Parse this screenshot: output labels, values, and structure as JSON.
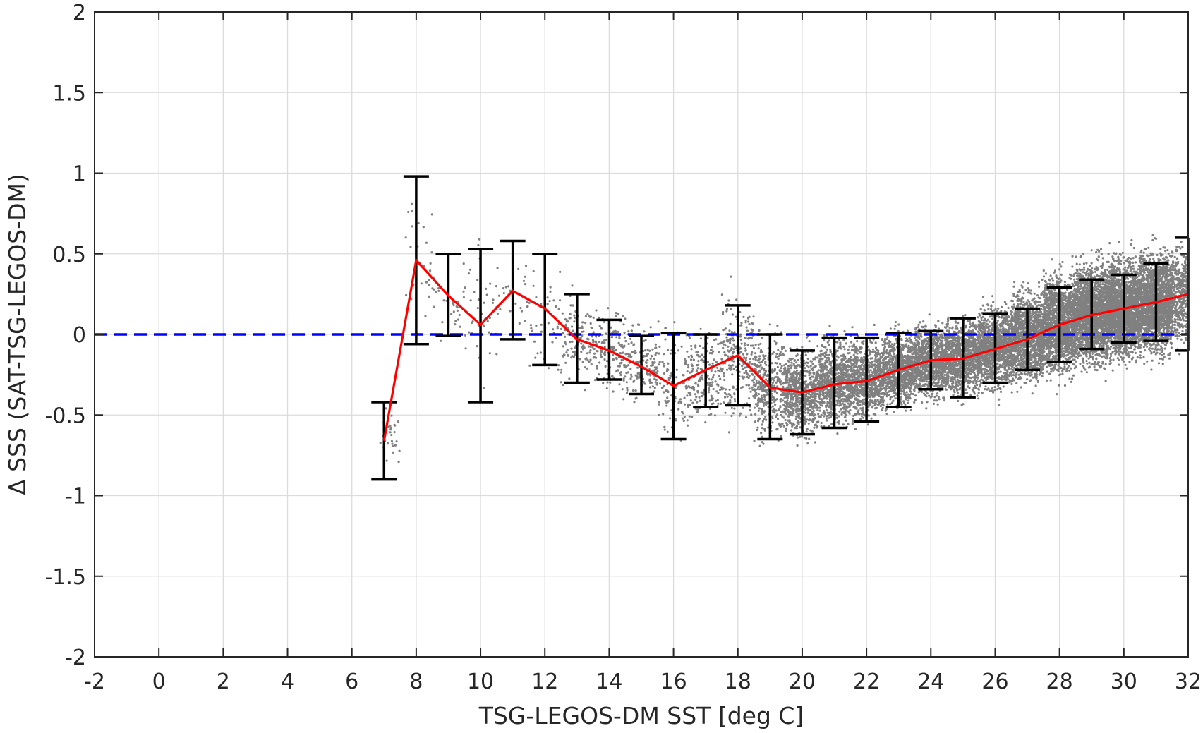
{
  "chart_data": {
    "type": "scatter",
    "title": "",
    "xlabel": "TSG-LEGOS-DM SST [deg C]",
    "ylabel": "Δ SSS (SAT-TSG-LEGOS-DM)",
    "xlim": [
      -2,
      32
    ],
    "ylim": [
      -2,
      2
    ],
    "x_ticks": [
      -2,
      0,
      2,
      4,
      6,
      8,
      10,
      12,
      14,
      16,
      18,
      20,
      22,
      24,
      26,
      28,
      30,
      32
    ],
    "x_tick_labels": [
      "-2",
      "0",
      "2",
      "4",
      "6",
      "8",
      "10",
      "12",
      "14",
      "16",
      "18",
      "20",
      "22",
      "24",
      "26",
      "28",
      "30",
      "32"
    ],
    "y_ticks": [
      -2,
      -1.5,
      -1,
      -0.5,
      0,
      0.5,
      1,
      1.5,
      2
    ],
    "y_tick_labels": [
      "-2",
      "-1.5",
      "-1",
      "-0.5",
      "0",
      "0.5",
      "1",
      "1.5",
      "2"
    ],
    "grid": true,
    "colors": {
      "scatter": "#808080",
      "mean_line": "#ff0000",
      "zero_line": "#0000ff",
      "error_bars": "#000000"
    },
    "reference_line": {
      "y": 0,
      "style": "dashed"
    },
    "scatter_density": [
      {
        "x": [
          6.8,
          7.6
        ],
        "center": -0.65,
        "spread": 0.12,
        "n": 30
      },
      {
        "x": [
          7.6,
          8.5
        ],
        "center": 0.5,
        "spread": 0.25,
        "n": 25
      },
      {
        "x": [
          8.5,
          9.5
        ],
        "center": 0.2,
        "spread": 0.15,
        "n": 30
      },
      {
        "x": [
          9.5,
          10.5
        ],
        "center": 0.1,
        "spread": 0.3,
        "n": 40
      },
      {
        "x": [
          10.5,
          11.5
        ],
        "center": 0.25,
        "spread": 0.15,
        "n": 25
      },
      {
        "x": [
          11.5,
          12.5
        ],
        "center": 0.1,
        "spread": 0.2,
        "n": 40
      },
      {
        "x": [
          12.5,
          13.5
        ],
        "center": -0.03,
        "spread": 0.18,
        "n": 120
      },
      {
        "x": [
          13.5,
          14.5
        ],
        "center": -0.1,
        "spread": 0.17,
        "n": 160
      },
      {
        "x": [
          14.5,
          15.5
        ],
        "center": -0.2,
        "spread": 0.15,
        "n": 160
      },
      {
        "x": [
          15.5,
          16.5
        ],
        "center": -0.3,
        "spread": 0.22,
        "n": 120
      },
      {
        "x": [
          16.5,
          17.5
        ],
        "center": -0.25,
        "spread": 0.18,
        "n": 180
      },
      {
        "x": [
          17.5,
          18.5
        ],
        "center": -0.15,
        "spread": 0.25,
        "n": 260
      },
      {
        "x": [
          18.5,
          19.5
        ],
        "center": -0.33,
        "spread": 0.2,
        "n": 420
      },
      {
        "x": [
          19.5,
          20.5
        ],
        "center": -0.36,
        "spread": 0.18,
        "n": 700
      },
      {
        "x": [
          20.5,
          21.5
        ],
        "center": -0.3,
        "spread": 0.17,
        "n": 800
      },
      {
        "x": [
          21.5,
          22.5
        ],
        "center": -0.28,
        "spread": 0.16,
        "n": 800
      },
      {
        "x": [
          22.5,
          23.5
        ],
        "center": -0.22,
        "spread": 0.15,
        "n": 850
      },
      {
        "x": [
          23.5,
          24.5
        ],
        "center": -0.16,
        "spread": 0.15,
        "n": 950
      },
      {
        "x": [
          24.5,
          25.5
        ],
        "center": -0.14,
        "spread": 0.16,
        "n": 1000
      },
      {
        "x": [
          25.5,
          26.5
        ],
        "center": -0.08,
        "spread": 0.17,
        "n": 1100
      },
      {
        "x": [
          26.5,
          27.5
        ],
        "center": -0.02,
        "spread": 0.18,
        "n": 1300
      },
      {
        "x": [
          27.5,
          28.5
        ],
        "center": 0.07,
        "spread": 0.2,
        "n": 1600
      },
      {
        "x": [
          28.5,
          29.5
        ],
        "center": 0.13,
        "spread": 0.2,
        "n": 1900
      },
      {
        "x": [
          29.5,
          30.5
        ],
        "center": 0.16,
        "spread": 0.2,
        "n": 2100
      },
      {
        "x": [
          30.5,
          31.5
        ],
        "center": 0.2,
        "spread": 0.21,
        "n": 1800
      },
      {
        "x": [
          31.5,
          32
        ],
        "center": 0.25,
        "spread": 0.2,
        "n": 400
      }
    ],
    "series": [
      {
        "name": "",
        "x": [
          7,
          8,
          9,
          10,
          11,
          12,
          13,
          14,
          15,
          16,
          17,
          18,
          19,
          20,
          21,
          22,
          23,
          24,
          25,
          26,
          27,
          28,
          29,
          30,
          31,
          32
        ],
        "mean": [
          -0.66,
          0.46,
          0.24,
          0.06,
          0.27,
          0.16,
          -0.03,
          -0.1,
          -0.2,
          -0.32,
          -0.22,
          -0.13,
          -0.33,
          -0.36,
          -0.31,
          -0.29,
          -0.22,
          -0.16,
          -0.15,
          -0.09,
          -0.03,
          0.06,
          0.12,
          0.16,
          0.2,
          0.25
        ],
        "err_low": [
          -0.9,
          -0.06,
          -0.01,
          -0.42,
          -0.03,
          -0.19,
          -0.3,
          -0.28,
          -0.37,
          -0.65,
          -0.45,
          -0.44,
          -0.65,
          -0.62,
          -0.58,
          -0.54,
          -0.45,
          -0.34,
          -0.39,
          -0.3,
          -0.22,
          -0.17,
          -0.09,
          -0.05,
          -0.04,
          -0.1
        ],
        "err_high": [
          -0.42,
          0.98,
          0.5,
          0.53,
          0.58,
          0.5,
          0.25,
          0.09,
          -0.01,
          0.01,
          0.0,
          0.18,
          0.0,
          -0.1,
          -0.02,
          -0.02,
          0.01,
          0.02,
          0.1,
          0.13,
          0.16,
          0.29,
          0.34,
          0.37,
          0.44,
          0.6
        ]
      }
    ]
  }
}
